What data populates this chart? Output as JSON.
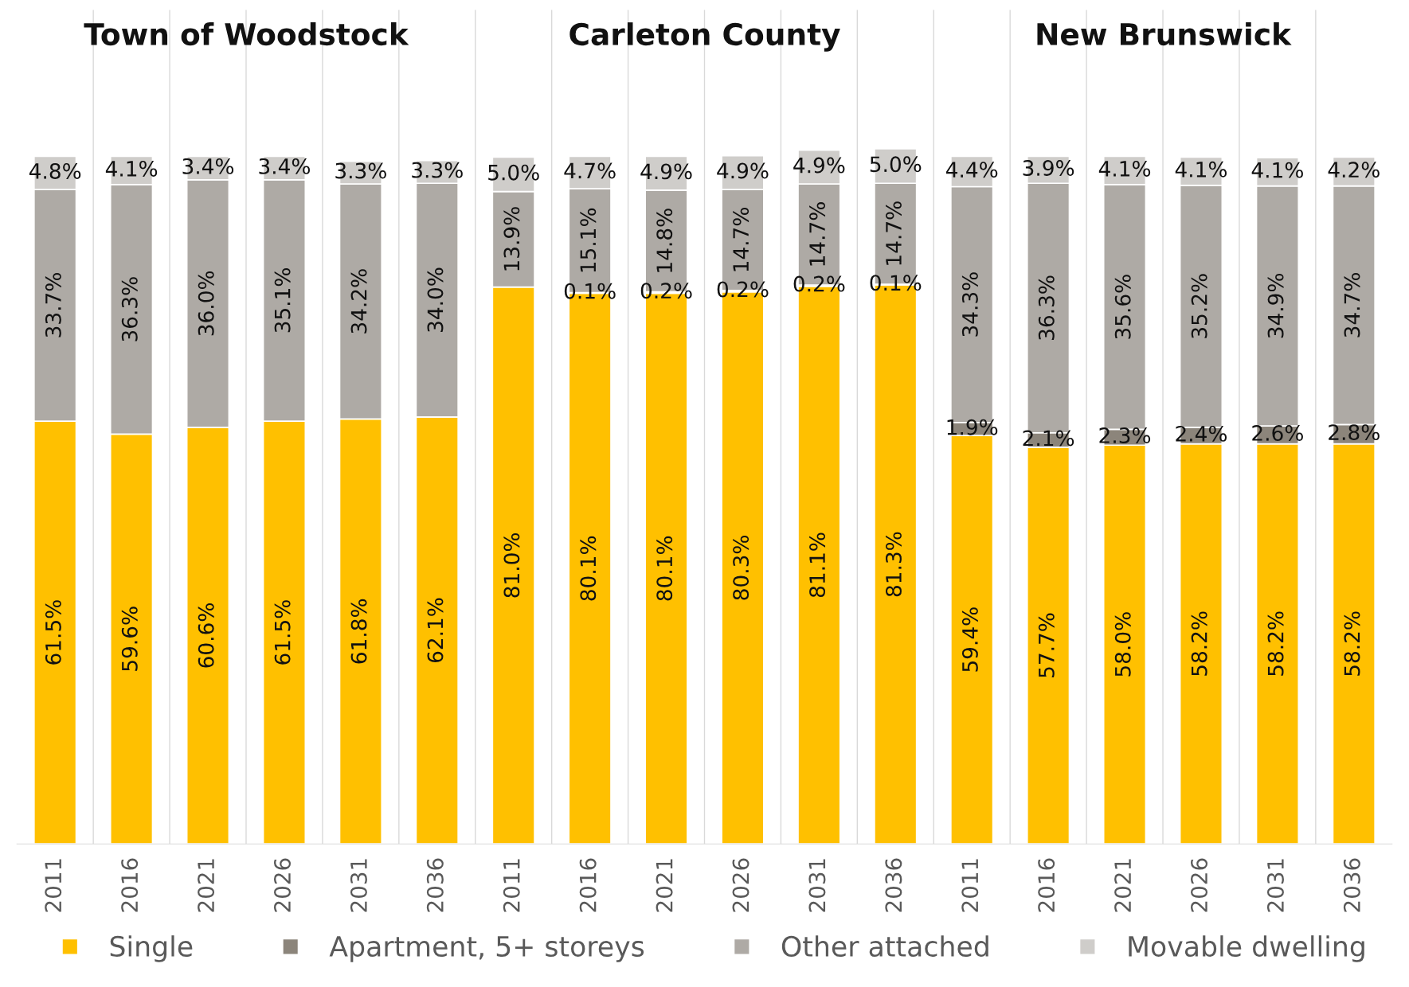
{
  "chart_data": {
    "type": "bar",
    "stacked": true,
    "grid": "x",
    "legend": "bottom",
    "tick_labels": "x",
    "annotations": [
      "Town of Woodstock",
      "Carleton County",
      "New Brunswick"
    ],
    "categories": [
      "2011",
      "2016",
      "2021",
      "2026",
      "2031",
      "2036",
      "2011",
      "2016",
      "2021",
      "2026",
      "2031",
      "2036",
      "2011",
      "2016",
      "2021",
      "2026",
      "2031",
      "2036"
    ],
    "series": [
      {
        "name": "Single",
        "color": "#ffc000",
        "values": [
          61.5,
          59.6,
          60.6,
          61.5,
          61.8,
          62.1,
          81.0,
          80.1,
          80.1,
          80.3,
          81.1,
          81.3,
          59.4,
          57.7,
          58.0,
          58.2,
          58.2,
          58.2
        ],
        "value_labels": [
          "61.5%",
          "59.6%",
          "60.6%",
          "61.5%",
          "61.8%",
          "62.1%",
          "81.0%",
          "80.1%",
          "80.1%",
          "80.3%",
          "81.1%",
          "81.3%",
          "59.4%",
          "57.7%",
          "58.0%",
          "58.2%",
          "58.2%",
          "58.2%"
        ]
      },
      {
        "name": "Apartment, 5+ storeys",
        "color": "#8c857b",
        "values": [
          null,
          null,
          null,
          null,
          null,
          null,
          null,
          0.1,
          0.2,
          0.2,
          0.2,
          0.1,
          1.9,
          2.1,
          2.3,
          2.4,
          2.6,
          2.8
        ],
        "value_labels": [
          null,
          null,
          null,
          null,
          null,
          null,
          null,
          "0.1%",
          "0.2%",
          "0.2%",
          "0.2%",
          "0.1%",
          "1.9%",
          "2.1%",
          "2.3%",
          "2.4%",
          "2.6%",
          "2.8%"
        ]
      },
      {
        "name": "Other attached",
        "color": "#aeaaa5",
        "values": [
          33.7,
          36.3,
          36.0,
          35.1,
          34.2,
          34.0,
          13.9,
          15.1,
          14.8,
          14.7,
          14.7,
          14.7,
          34.3,
          36.3,
          35.6,
          35.2,
          34.9,
          34.7
        ],
        "value_labels": [
          "33.7%",
          "36.3%",
          "36.0%",
          "35.1%",
          "34.2%",
          "34.0%",
          "13.9%",
          "15.1%",
          "14.8%",
          "14.7%",
          "14.7%",
          "14.7%",
          "34.3%",
          "36.3%",
          "35.6%",
          "35.2%",
          "34.9%",
          "34.7%"
        ]
      },
      {
        "name": "Movable dwelling",
        "color": "#cfcdca",
        "values": [
          4.8,
          4.1,
          3.4,
          3.4,
          3.3,
          3.3,
          5.0,
          4.7,
          4.9,
          4.9,
          4.9,
          5.0,
          4.4,
          3.9,
          4.1,
          4.1,
          4.1,
          4.2
        ],
        "value_labels": [
          "4.8%",
          "4.1%",
          "3.4%",
          "3.4%",
          "3.3%",
          "3.3%",
          "5.0%",
          "4.7%",
          "4.9%",
          "4.9%",
          "4.9%",
          "5.0%",
          "4.4%",
          "3.9%",
          "4.1%",
          "4.1%",
          "4.1%",
          "4.2%"
        ]
      }
    ]
  }
}
